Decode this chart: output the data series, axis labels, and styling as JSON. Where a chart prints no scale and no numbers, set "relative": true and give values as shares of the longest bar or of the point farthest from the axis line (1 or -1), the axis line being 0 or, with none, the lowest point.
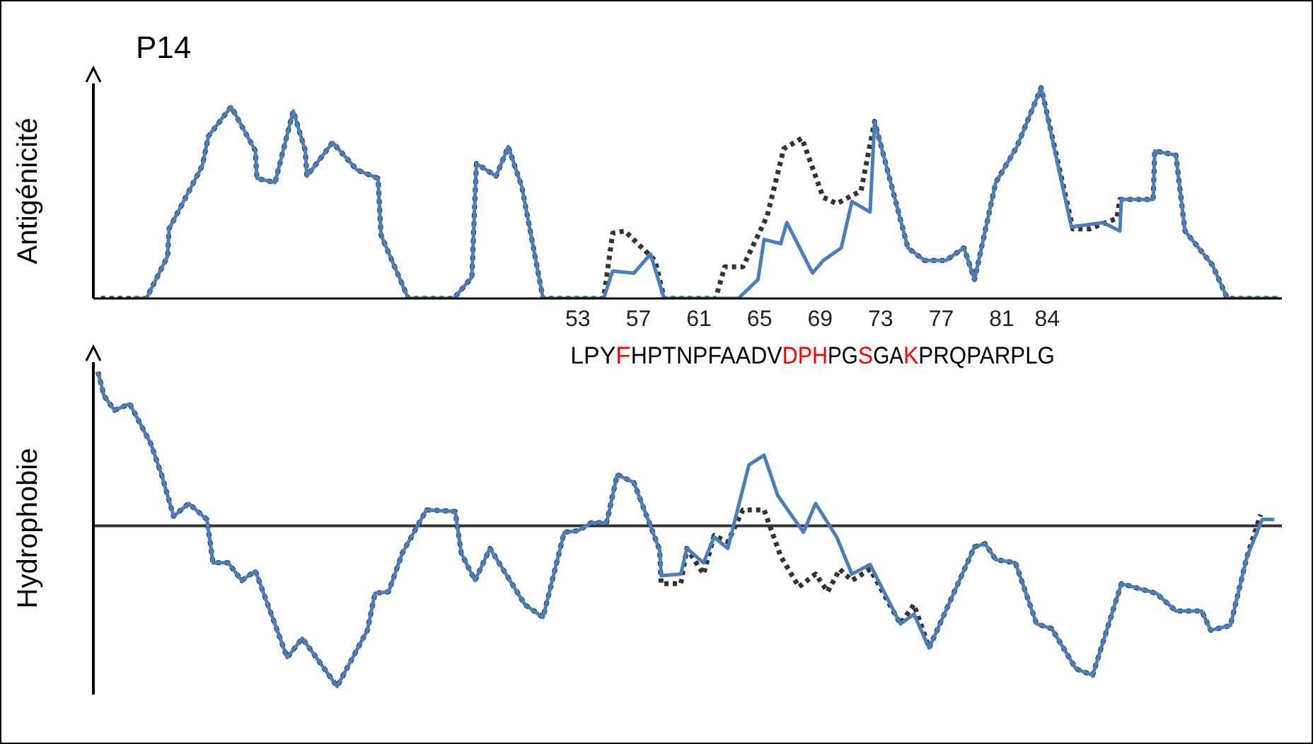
{
  "chart_data": [
    {
      "type": "line",
      "title": "P14",
      "ylabel": "Antigénicité",
      "relative": true,
      "xlim": [
        21,
        99.5
      ],
      "xticks": [
        53,
        57,
        61,
        65,
        69,
        73,
        77,
        81,
        84
      ],
      "tick_labels": "x",
      "marker": "none",
      "annotations": [
        "LPY",
        "F",
        "HPTNPFAADV",
        "DPH",
        "PG",
        "S",
        "GA",
        "K",
        "PRQPARPLG"
      ],
      "series": [
        {
          "color": "#333333",
          "line_style": "dashed",
          "x": [
            21.5,
            24.5,
            25.9,
            26.0,
            28.2,
            28.6,
            30.1,
            31.7,
            31.8,
            33.0,
            34.2,
            35.0,
            35.1,
            36.8,
            38.4,
            39.8,
            40.0,
            41.8,
            44.8,
            46.0,
            46.2,
            46.3,
            47.6,
            48.4,
            49.3,
            50.7,
            54.7,
            55.3,
            56.1,
            58.1,
            58.7,
            62.1,
            62.7,
            63.9,
            65.5,
            66.6,
            67.8,
            69.2,
            70.1,
            71.7,
            72.6,
            74.8,
            75.9,
            77.3,
            78.5,
            79.2,
            80.6,
            82.0,
            83.6,
            85.7,
            86.8,
            88.6,
            88.8,
            91.0,
            91.1,
            92.5,
            93.1,
            94.9,
            95.9,
            99.3
          ],
          "values": [
            0,
            0,
            0.2,
            0.33,
            0.63,
            0.77,
            0.91,
            0.7,
            0.57,
            0.55,
            0.89,
            0.7,
            0.58,
            0.74,
            0.61,
            0.57,
            0.3,
            0,
            0,
            0.1,
            0.47,
            0.64,
            0.58,
            0.72,
            0.53,
            0,
            0,
            0.31,
            0.32,
            0.18,
            0,
            0,
            0.15,
            0.15,
            0.39,
            0.71,
            0.76,
            0.48,
            0.45,
            0.51,
            0.84,
            0.24,
            0.18,
            0.18,
            0.24,
            0.09,
            0.55,
            0.72,
            1,
            0.33,
            0.33,
            0.38,
            0.47,
            0.47,
            0.7,
            0.68,
            0.32,
            0.16,
            0,
            0
          ]
        },
        {
          "color": "#4a7ebb",
          "x": [
            23.6,
            24.5,
            25.9,
            26.0,
            28.2,
            28.6,
            30.1,
            31.7,
            31.8,
            33.0,
            34.2,
            35.0,
            35.1,
            36.8,
            38.4,
            39.8,
            40.0,
            41.8,
            44.8,
            46.0,
            46.2,
            46.3,
            47.6,
            48.4,
            49.3,
            50.7,
            54.7,
            55.3,
            56.7,
            57.8,
            58.7,
            63.6,
            64.9,
            65.3,
            66.4,
            66.8,
            68.5,
            69.2,
            70.4,
            71.1,
            72.3,
            72.6,
            74.8,
            75.9,
            77.3,
            78.5,
            79.2,
            80.6,
            82.0,
            83.6,
            85.6,
            87.7,
            88.8,
            88.9,
            91.0,
            91.1,
            92.5,
            93.1,
            94.9,
            95.9,
            99.3
          ],
          "values": [
            0,
            0,
            0.2,
            0.33,
            0.63,
            0.77,
            0.91,
            0.7,
            0.57,
            0.55,
            0.89,
            0.7,
            0.58,
            0.74,
            0.61,
            0.57,
            0.3,
            0,
            0,
            0.1,
            0.47,
            0.64,
            0.58,
            0.72,
            0.53,
            0,
            0,
            0.13,
            0.12,
            0.21,
            0,
            0,
            0.09,
            0.28,
            0.26,
            0.36,
            0.12,
            0.18,
            0.24,
            0.46,
            0.41,
            0.84,
            0.24,
            0.18,
            0.18,
            0.24,
            0.09,
            0.55,
            0.72,
            1,
            0.34,
            0.36,
            0.32,
            0.47,
            0.47,
            0.7,
            0.68,
            0.32,
            0.16,
            0,
            0
          ]
        }
      ]
    },
    {
      "type": "line",
      "ylabel": "Hydrophobie",
      "relative": true,
      "xlim": [
        21,
        99.5
      ],
      "tick_labels": false,
      "marker": "none",
      "series": [
        {
          "color": "#333333",
          "line_style": "dashed",
          "x": [
            21.3,
            21.7,
            22.4,
            23.4,
            24.8,
            25.5,
            26.3,
            27.3,
            28.5,
            28.9,
            29.9,
            30.8,
            31.7,
            33.8,
            34.8,
            37.1,
            39.1,
            39.6,
            40.5,
            41.4,
            43.0,
            44.9,
            45.3,
            46.2,
            47.2,
            49.5,
            50.7,
            52.1,
            53.0,
            53.9,
            54.9,
            55.6,
            56.7,
            58.4,
            58.5,
            59.8,
            60.2,
            61.3,
            62.0,
            62.9,
            63.9,
            65.3,
            66.4,
            67.6,
            68.7,
            69.5,
            70.3,
            71.1,
            72.3,
            74.3,
            75.2,
            76.2,
            79.2,
            79.9,
            80.6,
            81.9,
            83.3,
            84.3,
            85.9,
            87.0,
            88.9,
            91.2,
            92.5,
            94.2,
            94.8,
            96.1,
            97.2,
            98.1
          ],
          "values": [
            0.96,
            0.81,
            0.72,
            0.76,
            0.51,
            0.32,
            0.06,
            0.14,
            0.04,
            -0.23,
            -0.23,
            -0.34,
            -0.28,
            -0.82,
            -0.7,
            -1,
            -0.65,
            -0.42,
            -0.41,
            -0.17,
            0.1,
            0.09,
            -0.17,
            -0.34,
            -0.14,
            -0.49,
            -0.57,
            -0.04,
            -0.03,
            0.02,
            0.02,
            0.32,
            0.27,
            -0.15,
            -0.36,
            -0.36,
            -0.14,
            -0.3,
            -0.06,
            -0.1,
            0.1,
            0.1,
            -0.19,
            -0.38,
            -0.3,
            -0.41,
            -0.27,
            -0.34,
            -0.27,
            -0.61,
            -0.49,
            -0.76,
            -0.13,
            -0.11,
            -0.21,
            -0.23,
            -0.61,
            -0.64,
            -0.89,
            -0.93,
            -0.36,
            -0.42,
            -0.53,
            -0.53,
            -0.65,
            -0.62,
            -0.19,
            0.07
          ]
        },
        {
          "color": "#4a7ebb",
          "x": [
            21.3,
            21.7,
            22.4,
            23.4,
            24.8,
            25.5,
            26.3,
            27.3,
            28.5,
            28.9,
            29.9,
            30.8,
            31.7,
            33.8,
            34.8,
            37.1,
            39.1,
            39.6,
            40.5,
            41.4,
            43.0,
            44.9,
            45.3,
            46.2,
            47.2,
            49.5,
            50.7,
            52.1,
            53.0,
            53.9,
            54.9,
            55.6,
            56.7,
            58.4,
            58.5,
            59.8,
            60.2,
            61.3,
            62.0,
            62.9,
            64.3,
            65.3,
            66.2,
            67.9,
            68.7,
            70.1,
            71.1,
            72.3,
            74.3,
            75.2,
            76.2,
            79.2,
            79.9,
            80.6,
            81.9,
            83.3,
            84.3,
            85.9,
            87.0,
            88.9,
            91.2,
            92.5,
            94.2,
            94.8,
            96.1,
            97.2,
            98.2,
            99.0
          ],
          "values": [
            0.96,
            0.81,
            0.72,
            0.76,
            0.51,
            0.32,
            0.06,
            0.14,
            0.04,
            -0.23,
            -0.23,
            -0.34,
            -0.28,
            -0.82,
            -0.7,
            -1,
            -0.65,
            -0.42,
            -0.41,
            -0.17,
            0.1,
            0.09,
            -0.17,
            -0.34,
            -0.14,
            -0.49,
            -0.57,
            -0.04,
            -0.03,
            0.02,
            0.02,
            0.32,
            0.27,
            -0.15,
            -0.31,
            -0.3,
            -0.14,
            -0.23,
            -0.07,
            -0.14,
            0.38,
            0.44,
            0.19,
            -0.04,
            0.14,
            -0.07,
            -0.3,
            -0.24,
            -0.61,
            -0.55,
            -0.76,
            -0.13,
            -0.11,
            -0.21,
            -0.23,
            -0.61,
            -0.64,
            -0.89,
            -0.93,
            -0.36,
            -0.42,
            -0.53,
            -0.53,
            -0.65,
            -0.62,
            -0.19,
            0.04,
            0.04
          ]
        }
      ]
    }
  ]
}
